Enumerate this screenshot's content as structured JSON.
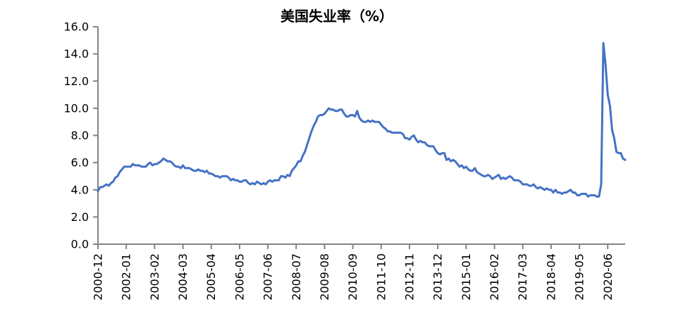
{
  "chart_data": {
    "type": "line",
    "title": "美国失业率（%）",
    "legend_position": "none",
    "grid": false,
    "ylim": [
      0,
      16
    ],
    "y_ticks": [
      0,
      2,
      4,
      6,
      8,
      10,
      12,
      14,
      16
    ],
    "y_tick_labels": [
      "0.0",
      "2.0",
      "4.0",
      "6.0",
      "8.0",
      "10.0",
      "12.0",
      "14.0",
      "16.0"
    ],
    "x_tick_labels": [
      "2000-12",
      "2002-01",
      "2003-02",
      "2004-03",
      "2005-04",
      "2006-05",
      "2007-06",
      "2008-07",
      "2009-08",
      "2010-09",
      "2011-10",
      "2012-11",
      "2013-12",
      "2015-01",
      "2016-02",
      "2017-03",
      "2018-04",
      "2019-05",
      "2020-06"
    ],
    "x_tick_every_n_months": 13,
    "x_start_month": "2000-12",
    "x_end_month": "2021-02",
    "frequency": "monthly",
    "series": [
      {
        "name": "美国失业率",
        "values": [
          3.9,
          4.2,
          4.2,
          4.3,
          4.4,
          4.3,
          4.5,
          4.6,
          4.9,
          5.0,
          5.3,
          5.5,
          5.7,
          5.7,
          5.7,
          5.7,
          5.9,
          5.8,
          5.8,
          5.8,
          5.7,
          5.7,
          5.7,
          5.9,
          6.0,
          5.8,
          5.9,
          5.9,
          6.0,
          6.1,
          6.3,
          6.2,
          6.1,
          6.1,
          6.0,
          5.8,
          5.7,
          5.7,
          5.6,
          5.8,
          5.6,
          5.6,
          5.6,
          5.5,
          5.4,
          5.4,
          5.5,
          5.4,
          5.4,
          5.3,
          5.4,
          5.2,
          5.2,
          5.1,
          5.0,
          5.0,
          4.9,
          5.0,
          5.0,
          5.0,
          4.9,
          4.7,
          4.8,
          4.7,
          4.7,
          4.6,
          4.6,
          4.7,
          4.7,
          4.5,
          4.4,
          4.5,
          4.4,
          4.6,
          4.5,
          4.4,
          4.5,
          4.4,
          4.6,
          4.7,
          4.6,
          4.7,
          4.7,
          4.7,
          5.0,
          5.0,
          4.9,
          5.1,
          5.0,
          5.4,
          5.6,
          5.8,
          6.1,
          6.1,
          6.5,
          6.8,
          7.3,
          7.8,
          8.3,
          8.7,
          9.0,
          9.4,
          9.5,
          9.5,
          9.6,
          9.8,
          10.0,
          9.9,
          9.9,
          9.8,
          9.8,
          9.9,
          9.9,
          9.6,
          9.4,
          9.4,
          9.5,
          9.5,
          9.4,
          9.8,
          9.3,
          9.1,
          9.0,
          9.0,
          9.1,
          9.0,
          9.1,
          9.0,
          9.0,
          9.0,
          8.8,
          8.6,
          8.5,
          8.3,
          8.3,
          8.2,
          8.2,
          8.2,
          8.2,
          8.2,
          8.1,
          7.8,
          7.8,
          7.7,
          7.9,
          8.0,
          7.7,
          7.5,
          7.6,
          7.5,
          7.5,
          7.3,
          7.2,
          7.2,
          7.2,
          6.9,
          6.7,
          6.6,
          6.7,
          6.7,
          6.2,
          6.3,
          6.1,
          6.2,
          6.1,
          5.9,
          5.7,
          5.8,
          5.6,
          5.7,
          5.5,
          5.4,
          5.4,
          5.6,
          5.3,
          5.2,
          5.1,
          5.0,
          5.0,
          5.1,
          5.0,
          4.8,
          4.9,
          5.0,
          5.1,
          4.8,
          4.9,
          4.8,
          4.9,
          5.0,
          4.9,
          4.7,
          4.7,
          4.7,
          4.6,
          4.4,
          4.4,
          4.4,
          4.3,
          4.3,
          4.4,
          4.2,
          4.1,
          4.2,
          4.1,
          4.0,
          4.1,
          4.0,
          4.0,
          3.8,
          4.0,
          3.8,
          3.8,
          3.7,
          3.8,
          3.8,
          3.9,
          4.0,
          3.8,
          3.8,
          3.6,
          3.6,
          3.7,
          3.7,
          3.7,
          3.5,
          3.6,
          3.6,
          3.6,
          3.5,
          3.5,
          4.4,
          14.8,
          13.2,
          11.0,
          10.2,
          8.4,
          7.8,
          6.8,
          6.7,
          6.7,
          6.3,
          6.2
        ]
      }
    ],
    "colors": {
      "line": "#4472C4",
      "axis": "#848484",
      "tick_label": "#000000",
      "title": "#000000",
      "background": "#FFFFFF"
    }
  }
}
